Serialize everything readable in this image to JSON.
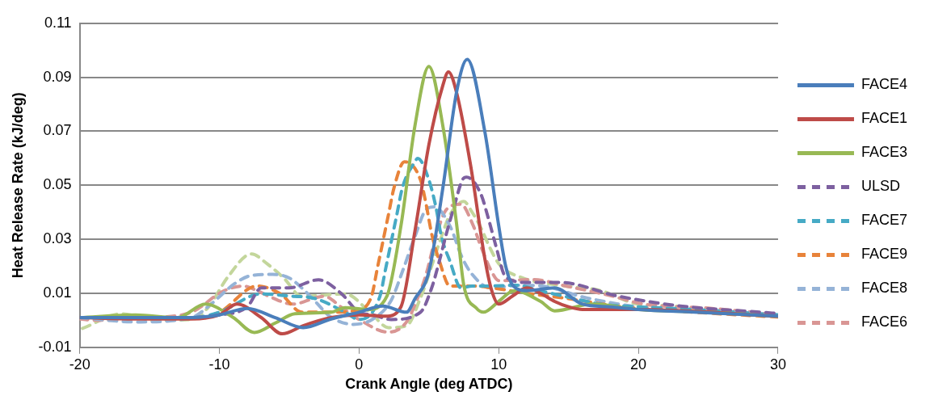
{
  "chart_data": {
    "type": "line",
    "xlabel": "Crank Angle (deg ATDC)",
    "ylabel": "Heat Release Rate (kJ/deg)",
    "xlim": [
      -20,
      30
    ],
    "xticks": [
      -20,
      -10,
      0,
      10,
      20,
      30
    ],
    "ylim": [
      -0.01,
      0.11
    ],
    "yticks": [
      -0.01,
      0.01,
      0.03,
      0.05,
      0.07,
      0.09,
      0.11
    ],
    "grid": "y",
    "legend": "right",
    "marker": "none",
    "series": [
      {
        "name": "FACE4",
        "color": "#4a7ebb",
        "line_style": "solid",
        "x": [
          -20,
          -16,
          -12,
          -10,
          -8,
          -6,
          -4,
          -2,
          0,
          1.7,
          3.4,
          4,
          5,
          6,
          7,
          7.75,
          9,
          10,
          10.5,
          11,
          12,
          14,
          16,
          18,
          20,
          24,
          30
        ],
        "values": [
          0.001,
          0.001,
          0.001,
          0.002,
          0.0044,
          0.001,
          -0.0027,
          0.0005,
          0.003,
          0.0053,
          0.003,
          0.008,
          0.018,
          0.049,
          0.085,
          0.0966,
          0.07,
          0.035,
          0.02,
          0.013,
          0.011,
          0.012,
          0.006,
          0.005,
          0.004,
          0.003,
          0.0015
        ]
      },
      {
        "name": "FACE1",
        "color": "#be4b48",
        "line_style": "solid",
        "x": [
          -20,
          -16,
          -12,
          -10,
          -8.75,
          -7,
          -5.5,
          -4,
          -2,
          0,
          1.9,
          3,
          4,
          5,
          6,
          6.4,
          7,
          8,
          9,
          9.5,
          10,
          11,
          12,
          13,
          14,
          15,
          16,
          20,
          30
        ],
        "values": [
          0.001,
          0.0005,
          0.0005,
          0.002,
          0.006,
          0.001,
          -0.005,
          -0.002,
          0.001,
          0.002,
          0.0015,
          0.005,
          0.033,
          0.065,
          0.087,
          0.092,
          0.084,
          0.057,
          0.023,
          0.011,
          0.006,
          0.009,
          0.012,
          0.01,
          0.007,
          0.005,
          0.004,
          0.004,
          0.0015
        ]
      },
      {
        "name": "FACE3",
        "color": "#98b954",
        "line_style": "solid",
        "x": [
          -20,
          -16,
          -13,
          -11,
          -9,
          -7.5,
          -6,
          -4.6,
          -2,
          -1,
          0.6,
          2,
          3,
          4,
          5,
          6,
          7,
          7.5,
          8.4,
          8.9,
          10,
          11.1,
          13,
          14,
          16.7,
          20,
          25,
          30
        ],
        "values": [
          0.001,
          0.002,
          0.001,
          0.006,
          0.001,
          -0.0045,
          -0.001,
          0.0024,
          0.003,
          0.0047,
          0.004,
          0.009,
          0.035,
          0.072,
          0.094,
          0.072,
          0.035,
          0.013,
          0.0045,
          0.003,
          0.007,
          0.011,
          0.007,
          0.0035,
          0.006,
          0.004,
          0.003,
          0.0015
        ]
      },
      {
        "name": "ULSD",
        "color": "#7d60a0",
        "line_style": "dashed",
        "x": [
          -20,
          -16,
          -12,
          -10,
          -8,
          -7,
          -5,
          -2.9,
          -1.25,
          0,
          1,
          2.3,
          4.4,
          5.2,
          5.75,
          6.25,
          6.8,
          7.4,
          7.7,
          8.7,
          9.3,
          9.8,
          10.5,
          12.1,
          14.4,
          18.5,
          23,
          28.8,
          30
        ],
        "values": [
          0.001,
          0.001,
          0.001,
          0.002,
          0.005,
          0.012,
          0.012,
          0.015,
          0.0098,
          0.003,
          0.002,
          0.0003,
          0.003,
          0.012,
          0.022,
          0.032,
          0.042,
          0.052,
          0.053,
          0.047,
          0.037,
          0.0275,
          0.016,
          0.014,
          0.014,
          0.009,
          0.0053,
          0.003,
          0.0025
        ]
      },
      {
        "name": "FACE7",
        "color": "#46aac5",
        "line_style": "dashed",
        "x": [
          -20,
          -16,
          -12,
          -10,
          -7,
          -5,
          -3.1,
          -1,
          0,
          1.5,
          1.9,
          2.3,
          2.7,
          3.1,
          4,
          4.2,
          5,
          5.5,
          5.9,
          6.5,
          7.3,
          8.1,
          9.2,
          11.3,
          12.9,
          15.2,
          17.3,
          20,
          24,
          30
        ],
        "values": [
          0.001,
          0.001,
          0.001,
          0.003,
          0.0098,
          0.009,
          0.008,
          0.003,
          0.0003,
          0.009,
          0.019,
          0.029,
          0.039,
          0.049,
          0.0587,
          0.06,
          0.052,
          0.042,
          0.031,
          0.022,
          0.012,
          0.0127,
          0.0127,
          0.013,
          0.011,
          0.0083,
          0.006,
          0.005,
          0.004,
          0.002
        ]
      },
      {
        "name": "FACE9",
        "color": "#e8833a",
        "line_style": "dashed",
        "x": [
          -20,
          -16,
          -12,
          -10,
          -7.3,
          -5.6,
          -4.1,
          -2,
          0,
          0.9,
          1.3,
          1.7,
          2.1,
          2.5,
          3.25,
          4.4,
          4.8,
          5.2,
          5.75,
          6.5,
          8.25,
          9.5,
          12.3,
          14.6,
          16.5,
          18.8,
          24,
          30
        ],
        "values": [
          0.001,
          0.001,
          0.001,
          0.003,
          0.0127,
          0.0097,
          0.003,
          0.003,
          0.004,
          0.009,
          0.019,
          0.029,
          0.039,
          0.049,
          0.0587,
          0.052,
          0.043,
          0.032,
          0.022,
          0.0127,
          0.0127,
          0.012,
          0.0098,
          0.0083,
          0.0068,
          0.005,
          0.003,
          0.0012
        ]
      },
      {
        "name": "FACE8",
        "color": "#95b3d7",
        "line_style": "dashed",
        "x": [
          -20,
          -16,
          -12,
          -10.6,
          -8.9,
          -7.7,
          -6.2,
          -5,
          -4.1,
          -3.1,
          -2.1,
          -0.4,
          1,
          2.3,
          3.1,
          4,
          4.8,
          5.4,
          6.5,
          7.4,
          8.1,
          9.4,
          11.5,
          13.1,
          16.3,
          20.4,
          25,
          30
        ],
        "values": [
          0.001,
          -0.0006,
          0.001,
          0.006,
          0.0136,
          0.0166,
          0.017,
          0.0157,
          0.012,
          0.0068,
          0.0015,
          -0.0015,
          0.0005,
          0.0074,
          0.018,
          0.031,
          0.041,
          0.042,
          0.035,
          0.023,
          0.017,
          0.012,
          0.013,
          0.0127,
          0.0083,
          0.0047,
          0.0035,
          0.002
        ]
      },
      {
        "name": "FACE6",
        "color": "#d99694",
        "line_style": "dashed",
        "x": [
          -20,
          -18.7,
          -15,
          -12,
          -9.75,
          -8.3,
          -7.3,
          -6.2,
          -4.75,
          -2.5,
          -1.25,
          0,
          2.1,
          3.4,
          4.2,
          4.8,
          5.4,
          6.25,
          7.3,
          8.1,
          8.75,
          9.4,
          10,
          12.5,
          14.8,
          18.1,
          20.4,
          25,
          30
        ],
        "values": [
          0.0005,
          0,
          0.001,
          0.003,
          0.0107,
          0.0127,
          0.011,
          0.0083,
          0.006,
          0.0089,
          0.0048,
          0.0003,
          -0.0044,
          -0.0006,
          0.0083,
          0.017,
          0.029,
          0.041,
          0.043,
          0.036,
          0.027,
          0.019,
          0.0147,
          0.0151,
          0.0127,
          0.009,
          0.006,
          0.0045,
          0.002
        ]
      },
      {
        "color": "#c3d69b",
        "line_style": "dashed",
        "x": [
          -19.8,
          -17,
          -14.6,
          -12,
          -10.8,
          -9.4,
          -7.7,
          -6.6,
          -5.4,
          -4.1,
          -1,
          0.9,
          2.1,
          3.4,
          4.4,
          5,
          5.9,
          6.5,
          7.5,
          8.1,
          8.75,
          9.3,
          10,
          11.7,
          14.8,
          17.3,
          19.8,
          22.5,
          25.6,
          30
        ],
        "values": [
          -0.003,
          0.0024,
          0,
          0.0003,
          0.0048,
          0.016,
          0.0246,
          0.021,
          0.0157,
          0.0089,
          0.0098,
          0.0024,
          -0.0027,
          -0.002,
          0.0083,
          0.017,
          0.031,
          0.039,
          0.044,
          0.04,
          0.034,
          0.0276,
          0.021,
          0.0157,
          0.0127,
          0.011,
          0.0062,
          0.0053,
          0.0033,
          0.002
        ]
      }
    ]
  }
}
